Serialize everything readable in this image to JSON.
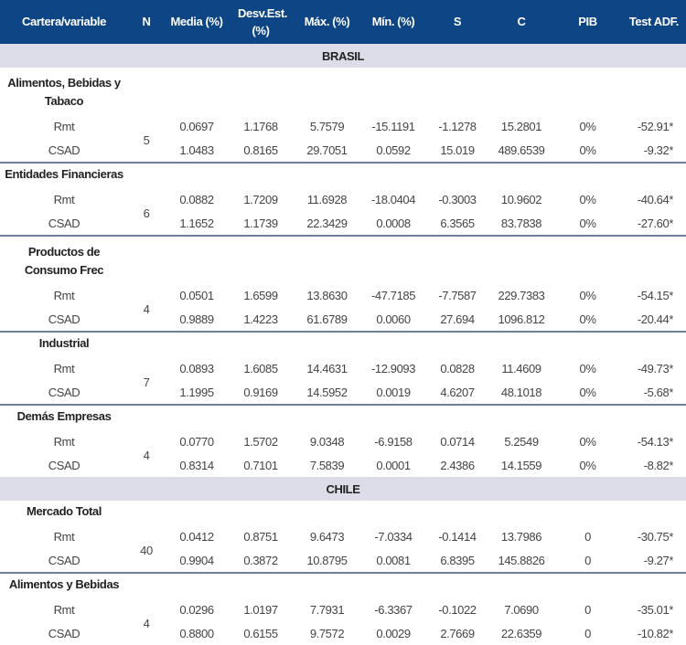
{
  "columns": [
    "Cartera/variable",
    "N",
    "Media (%)",
    "Desv.Est. (%)",
    "Máx. (%)",
    "Mín. (%)",
    "S",
    "C",
    "PIB",
    "Test ADF."
  ],
  "colors": {
    "header_bg": "#0d4585",
    "section_bg": "#dcdde9",
    "divider": "#6f7f9a"
  },
  "sections": [
    {
      "title": "BRASIL",
      "groups": [
        {
          "name": "Alimentos, Bebidas y Tabaco",
          "n": "5",
          "rows": [
            {
              "label": "Rmt",
              "values": [
                "0.0697",
                "1.1768",
                "5.7579",
                "-15.1191",
                "-1.1278",
                "15.2801",
                "0%",
                "-52.91*"
              ]
            },
            {
              "label": "CSAD",
              "values": [
                "1.0483",
                "0.8165",
                "29.7051",
                "0.0592",
                "15.019",
                "489.6539",
                "0%",
                "-9.32*"
              ]
            }
          ]
        },
        {
          "name": "Entidades Financieras",
          "n": "6",
          "rows": [
            {
              "label": "Rmt",
              "values": [
                "0.0882",
                "1.7209",
                "11.6928",
                "-18.0404",
                "-0.3003",
                "10.9602",
                "0%",
                "-40.64*"
              ]
            },
            {
              "label": "CSAD",
              "values": [
                "1.1652",
                "1.1739",
                "22.3429",
                "0.0008",
                "6.3565",
                "83.7838",
                "0%",
                "-27.60*"
              ]
            }
          ]
        },
        {
          "name": "Productos de Consumo Frec",
          "n": "4",
          "rows": [
            {
              "label": "Rmt",
              "values": [
                "0.0501",
                "1.6599",
                "13.8630",
                "-47.7185",
                "-7.7587",
                "229.7383",
                "0%",
                "-54.15*"
              ]
            },
            {
              "label": "CSAD",
              "values": [
                "0.9889",
                "1.4223",
                "61.6789",
                "0.0060",
                "27.694",
                "1096.812",
                "0%",
                "-20.44*"
              ]
            }
          ]
        },
        {
          "name": "Industrial",
          "n": "7",
          "rows": [
            {
              "label": "Rmt",
              "values": [
                "0.0893",
                "1.6085",
                "14.4631",
                "-12.9093",
                "0.0828",
                "11.4609",
                "0%",
                "-49.73*"
              ]
            },
            {
              "label": "CSAD",
              "values": [
                "1.1995",
                "0.9169",
                "14.5952",
                "0.0019",
                "4.6207",
                "48.1018",
                "0%",
                "-5.68*"
              ]
            }
          ]
        },
        {
          "name": "Demás Empresas",
          "n": "4",
          "rows": [
            {
              "label": "Rmt",
              "values": [
                "0.0770",
                "1.5702",
                "9.0348",
                "-6.9158",
                "0.0714",
                "5.2549",
                "0%",
                "-54.13*"
              ]
            },
            {
              "label": "CSAD",
              "values": [
                "0.8314",
                "0.7101",
                "7.5839",
                "0.0001",
                "2.4386",
                "14.1559",
                "0%",
                "-8.82*"
              ]
            }
          ]
        }
      ]
    },
    {
      "title": "CHILE",
      "groups": [
        {
          "name": "Mercado Total",
          "n": "40",
          "rows": [
            {
              "label": "Rmt",
              "values": [
                "0.0412",
                "0.8751",
                "9.6473",
                "-7.0334",
                "-0.1414",
                "13.7986",
                "0",
                "-30.75*"
              ]
            },
            {
              "label": "CSAD",
              "values": [
                "0.9904",
                "0.3872",
                "10.8795",
                "0.0081",
                "6.8395",
                "145.8826",
                "0",
                "-9.27*"
              ]
            }
          ]
        },
        {
          "name": "Alimentos y Bebidas",
          "n": "4",
          "rows": [
            {
              "label": "Rmt",
              "values": [
                "0.0296",
                "1.0197",
                "7.7931",
                "-6.3367",
                "-0.1022",
                "7.0690",
                "0",
                "-35.01*"
              ]
            },
            {
              "label": "CSAD",
              "values": [
                "0.8800",
                "0.6155",
                "9.7572",
                "0.0029",
                "2.7669",
                "22.6359",
                "0",
                "-10.82*"
              ]
            }
          ]
        }
      ]
    }
  ]
}
